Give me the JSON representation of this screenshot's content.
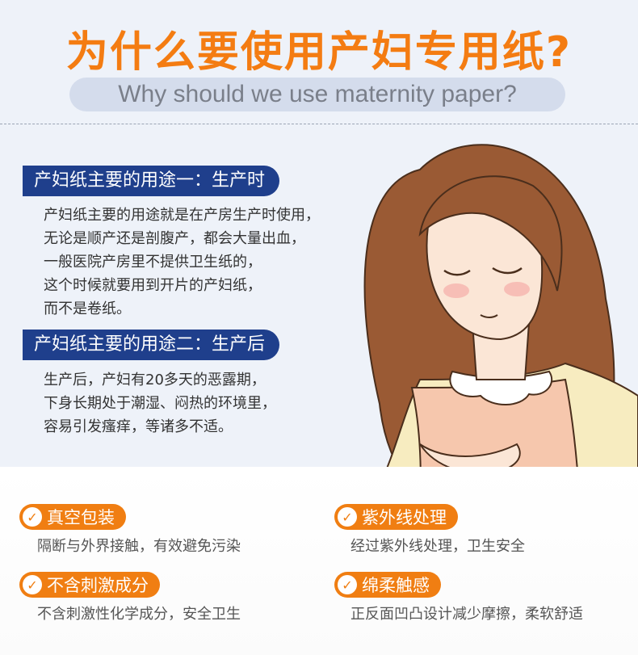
{
  "header": {
    "title": "为什么要使用产妇专用纸?",
    "subtitle": "Why should we use maternity paper?"
  },
  "sections": [
    {
      "heading": "产妇纸主要的用途一：生产时",
      "lines": [
        "产妇纸主要的用途就是在产房生产时使用，",
        "无论是顺产还是剖腹产，都会大量出血，",
        "一般医院产房里不提供卫生纸的，",
        "这个时候就要用到开片的产妇纸，",
        "而不是卷纸。"
      ]
    },
    {
      "heading": "产妇纸主要的用途二：生产后",
      "lines": [
        "生产后，产妇有20多天的恶露期，",
        "下身长期处于潮湿、闷热的环境里，",
        "容易引发瘙痒，等诸多不适。"
      ]
    }
  ],
  "features": [
    {
      "title": "真空包装",
      "desc": "隔断与外界接触，有效避免污染"
    },
    {
      "title": "紫外线处理",
      "desc": "经过紫外线处理，卫生安全"
    },
    {
      "title": "不含刺激成分",
      "desc": "不含刺激性化学成分，安全卫生"
    },
    {
      "title": "绵柔触感",
      "desc": "正反面凹凸设计减少摩擦，柔软舒适"
    }
  ],
  "icons": {
    "feature_check": "checkmark-icon"
  },
  "colors": {
    "accent": "#f07e12",
    "heading_bg": "#1f3f8c",
    "hair": "#9a5a34",
    "skin": "#fbe6d6"
  }
}
